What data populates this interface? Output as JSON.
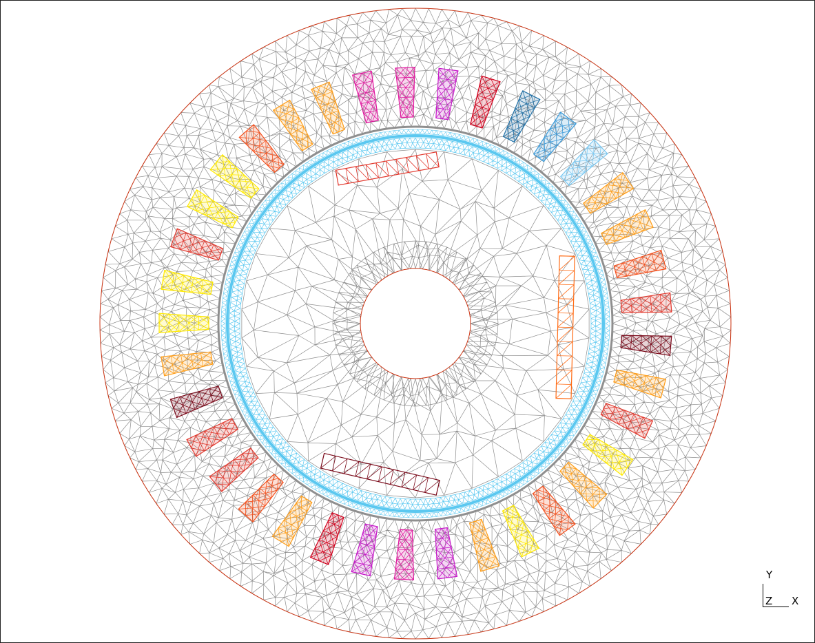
{
  "axes_triad": {
    "y_label": "Y",
    "z_label": "Z",
    "x_label": "X"
  },
  "colors": {
    "background": "#ffffff",
    "mesh_line": "#8c8c8c",
    "boundary": "#cc3311",
    "airgap": "#5bc8f0",
    "airgap_dark": "#8f8f8f",
    "coil_palette": [
      "#ffea00",
      "#ff9f1c",
      "#f4511e",
      "#e23a2f",
      "#d1001c",
      "#7a0a1a",
      "#e0199f",
      "#c61ac9",
      "#1f6fa5",
      "#3b9ad9",
      "#7cc9f2"
    ]
  },
  "stator_slot_colors": [
    "#ff9f1c",
    "#e0199f",
    "#e0199f",
    "#c61ac9",
    "#d1001c",
    "#1f6fa5",
    "#3b9ad9",
    "#7cc9f2",
    "#ff9f1c",
    "#ff9f1c",
    "#f4511e",
    "#e23a2f",
    "#7a0a1a",
    "#ff9f1c",
    "#e23a2f",
    "#ffea00",
    "#ff9f1c",
    "#f4511e",
    "#ffea00",
    "#ff9f1c",
    "#c61ac9",
    "#e0199f",
    "#c61ac9",
    "#d1001c",
    "#ff9f1c",
    "#f4511e",
    "#e23a2f",
    "#e23a2f",
    "#7a0a1a",
    "#ff9f1c",
    "#ffea00",
    "#ffea00",
    "#e23a2f",
    "#ffea00",
    "#ffea00",
    "#f4511e",
    "#ff9f1c"
  ],
  "rotor_bars": [
    {
      "color": "#e23a2f"
    },
    {
      "color": "#ff6a13"
    },
    {
      "color": "#7a0a1a"
    }
  ]
}
